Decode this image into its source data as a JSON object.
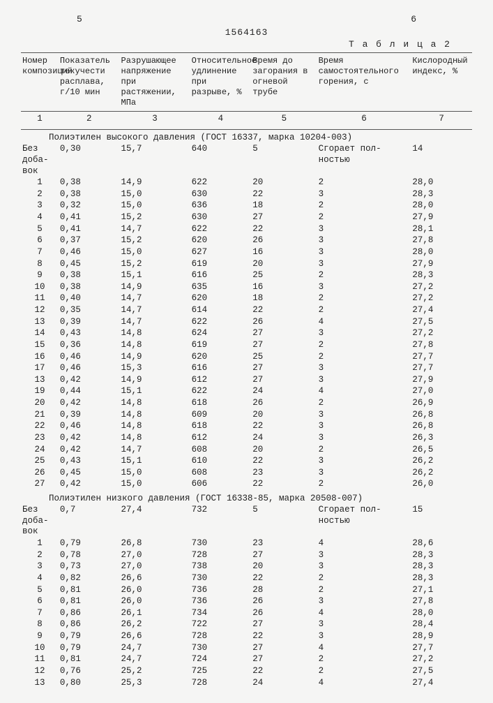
{
  "page_left": "5",
  "doc_number": "1564163",
  "page_right": "6",
  "table_label": "Т а б л и ц а  2",
  "headers": {
    "c1": "Номер композиций",
    "c2": "Показатель текучести расплава, г/10 мин",
    "c3": "Разрушающее напряжение при растяжении, МПа",
    "c4": "Относительное удлинение при разрыве, %",
    "c5": "Время до загорания в огневой трубе",
    "c6": "Время самостоятельного горения, с",
    "c7": "Кислородный индекс, %"
  },
  "colnums": [
    "1",
    "2",
    "3",
    "4",
    "5",
    "6",
    "7"
  ],
  "section1": {
    "title": "Полиэтилен высокого давления (ГОСТ 16337, марка 10204-003)",
    "base_label": "Без добавок",
    "base": [
      "0,30",
      "15,7",
      "640",
      "5",
      "Сгорает полностью",
      "14"
    ],
    "rows": [
      [
        "1",
        "0,38",
        "14,9",
        "622",
        "20",
        "2",
        "28,0"
      ],
      [
        "2",
        "0,38",
        "15,0",
        "630",
        "22",
        "3",
        "28,3"
      ],
      [
        "3",
        "0,32",
        "15,0",
        "636",
        "18",
        "2",
        "28,0"
      ],
      [
        "4",
        "0,41",
        "15,2",
        "630",
        "27",
        "2",
        "27,9"
      ],
      [
        "5",
        "0,41",
        "14,7",
        "622",
        "22",
        "3",
        "28,1"
      ],
      [
        "6",
        "0,37",
        "15,2",
        "620",
        "26",
        "3",
        "27,8"
      ],
      [
        "7",
        "0,46",
        "15,0",
        "627",
        "16",
        "3",
        "28,0"
      ],
      [
        "8",
        "0,45",
        "15,2",
        "619",
        "20",
        "3",
        "27,9"
      ],
      [
        "9",
        "0,38",
        "15,1",
        "616",
        "25",
        "2",
        "28,3"
      ],
      [
        "10",
        "0,38",
        "14,9",
        "635",
        "16",
        "3",
        "27,2"
      ],
      [
        "11",
        "0,40",
        "14,7",
        "620",
        "18",
        "2",
        "27,2"
      ],
      [
        "12",
        "0,35",
        "14,7",
        "614",
        "22",
        "2",
        "27,4"
      ],
      [
        "13",
        "0,39",
        "14,7",
        "622",
        "26",
        "4",
        "27,5"
      ],
      [
        "14",
        "0,43",
        "14,8",
        "624",
        "27",
        "3",
        "27,2"
      ],
      [
        "15",
        "0,36",
        "14,8",
        "619",
        "27",
        "2",
        "27,8"
      ],
      [
        "16",
        "0,46",
        "14,9",
        "620",
        "25",
        "2",
        "27,7"
      ],
      [
        "17",
        "0,46",
        "15,3",
        "616",
        "27",
        "3",
        "27,7"
      ],
      [
        "13",
        "0,42",
        "14,9",
        "612",
        "27",
        "3",
        "27,9"
      ],
      [
        "19",
        "0,44",
        "15,1",
        "622",
        "24",
        "4",
        "27,0"
      ],
      [
        "20",
        "0,42",
        "14,8",
        "618",
        "26",
        "2",
        "26,9"
      ],
      [
        "21",
        "0,39",
        "14,8",
        "609",
        "20",
        "3",
        "26,8"
      ],
      [
        "22",
        "0,46",
        "14,8",
        "618",
        "22",
        "3",
        "26,8"
      ],
      [
        "23",
        "0,42",
        "14,8",
        "612",
        "24",
        "3",
        "26,3"
      ],
      [
        "24",
        "0,42",
        "14,7",
        "608",
        "20",
        "2",
        "26,5"
      ],
      [
        "25",
        "0,43",
        "15,1",
        "610",
        "22",
        "3",
        "26,2"
      ],
      [
        "26",
        "0,45",
        "15,0",
        "608",
        "23",
        "3",
        "26,2"
      ],
      [
        "27",
        "0,42",
        "15,0",
        "606",
        "22",
        "2",
        "26,0"
      ]
    ]
  },
  "section2": {
    "title": "Полиэтилен низкого давления (ГОСТ 16338-85, марка 20508-007)",
    "base_label": "Без добавок",
    "base": [
      "0,7",
      "27,4",
      "732",
      "5",
      "Сгорает полностью",
      "15"
    ],
    "rows": [
      [
        "1",
        "0,79",
        "26,8",
        "730",
        "23",
        "4",
        "28,6"
      ],
      [
        "2",
        "0,78",
        "27,0",
        "728",
        "27",
        "3",
        "28,3"
      ],
      [
        "3",
        "0,73",
        "27,0",
        "738",
        "20",
        "3",
        "28,3"
      ],
      [
        "4",
        "0,82",
        "26,6",
        "730",
        "22",
        "2",
        "28,3"
      ],
      [
        "5",
        "0,81",
        "26,0",
        "736",
        "28",
        "2",
        "27,1"
      ],
      [
        "6",
        "0,81",
        "26,0",
        "736",
        "26",
        "3",
        "27,8"
      ],
      [
        "7",
        "0,86",
        "26,1",
        "734",
        "26",
        "4",
        "28,0"
      ],
      [
        "8",
        "0,86",
        "26,2",
        "722",
        "27",
        "3",
        "28,4"
      ],
      [
        "9",
        "0,79",
        "26,6",
        "728",
        "22",
        "3",
        "28,9"
      ],
      [
        "10",
        "0,79",
        "24,7",
        "730",
        "27",
        "4",
        "27,7"
      ],
      [
        "11",
        "0,81",
        "24,7",
        "724",
        "27",
        "2",
        "27,2"
      ],
      [
        "12",
        "0,76",
        "25,2",
        "725",
        "22",
        "2",
        "27,5"
      ],
      [
        "13",
        "0,80",
        "25,3",
        "728",
        "24",
        "4",
        "27,4"
      ]
    ]
  }
}
